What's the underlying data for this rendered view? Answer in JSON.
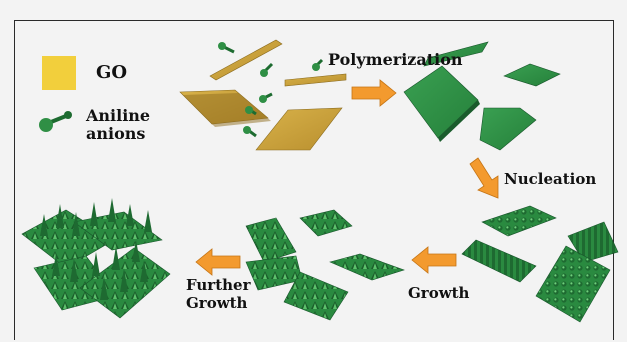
{
  "legend": {
    "go_label": "GO",
    "aniline_label_line1": "Aniline",
    "aniline_label_line2": "anions"
  },
  "steps": {
    "polymerization": "Polymerization",
    "nucleation": "Nucleation",
    "growth": "Growth",
    "further_growth_line1": "Further",
    "further_growth_line2": "Growth"
  },
  "colors": {
    "go_yellow": "#f2cf3c",
    "go_sheet": "#c9a43c",
    "polymer_green": "#2f8f45",
    "dark_green": "#1d6b30",
    "arrow_orange": "#f39a2e",
    "background": "#f3f3f3"
  }
}
